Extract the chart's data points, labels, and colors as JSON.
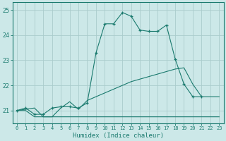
{
  "title": "",
  "xlabel": "Humidex (Indice chaleur)",
  "xlim": [
    -0.5,
    23.5
  ],
  "ylim": [
    20.5,
    25.3
  ],
  "yticks": [
    21,
    22,
    23,
    24,
    25
  ],
  "xticks": [
    0,
    1,
    2,
    3,
    4,
    5,
    6,
    7,
    8,
    9,
    10,
    11,
    12,
    13,
    14,
    15,
    16,
    17,
    18,
    19,
    20,
    21,
    22,
    23
  ],
  "bg_color": "#cce8e8",
  "line_color": "#1a7a6e",
  "grid_color": "#aacccc",
  "line1_x": [
    0,
    1,
    2,
    3,
    4,
    5,
    6,
    7,
    8,
    9,
    10,
    11,
    12,
    13,
    14,
    15,
    16,
    17,
    18,
    19,
    20,
    21
  ],
  "line1_y": [
    21.0,
    21.1,
    20.85,
    20.85,
    21.1,
    21.15,
    21.15,
    21.1,
    21.3,
    23.3,
    24.45,
    24.45,
    24.9,
    24.75,
    24.2,
    24.15,
    24.15,
    24.4,
    23.05,
    22.05,
    21.55,
    21.55
  ],
  "line2_x": [
    0,
    1,
    2,
    3,
    4,
    5,
    6,
    7,
    8,
    9,
    10,
    11,
    12,
    13,
    14,
    15,
    16,
    17,
    18,
    19,
    20,
    21,
    22,
    23
  ],
  "line2_y": [
    21.0,
    21.05,
    21.1,
    20.75,
    20.75,
    21.1,
    21.35,
    21.05,
    21.4,
    21.55,
    21.7,
    21.85,
    22.0,
    22.15,
    22.25,
    22.35,
    22.45,
    22.55,
    22.65,
    22.7,
    22.05,
    21.55,
    21.55,
    21.55
  ],
  "line3_x": [
    0,
    1,
    2,
    3,
    4,
    5,
    6,
    7,
    8,
    9,
    10,
    11,
    12,
    13,
    14,
    15,
    16,
    17,
    18,
    19,
    20,
    21,
    22,
    23
  ],
  "line3_y": [
    21.0,
    21.0,
    20.75,
    20.75,
    20.75,
    20.75,
    20.75,
    20.75,
    20.75,
    20.75,
    20.75,
    20.75,
    20.75,
    20.75,
    20.75,
    20.75,
    20.75,
    20.75,
    20.75,
    20.75,
    20.75,
    20.75,
    20.75,
    20.75
  ]
}
